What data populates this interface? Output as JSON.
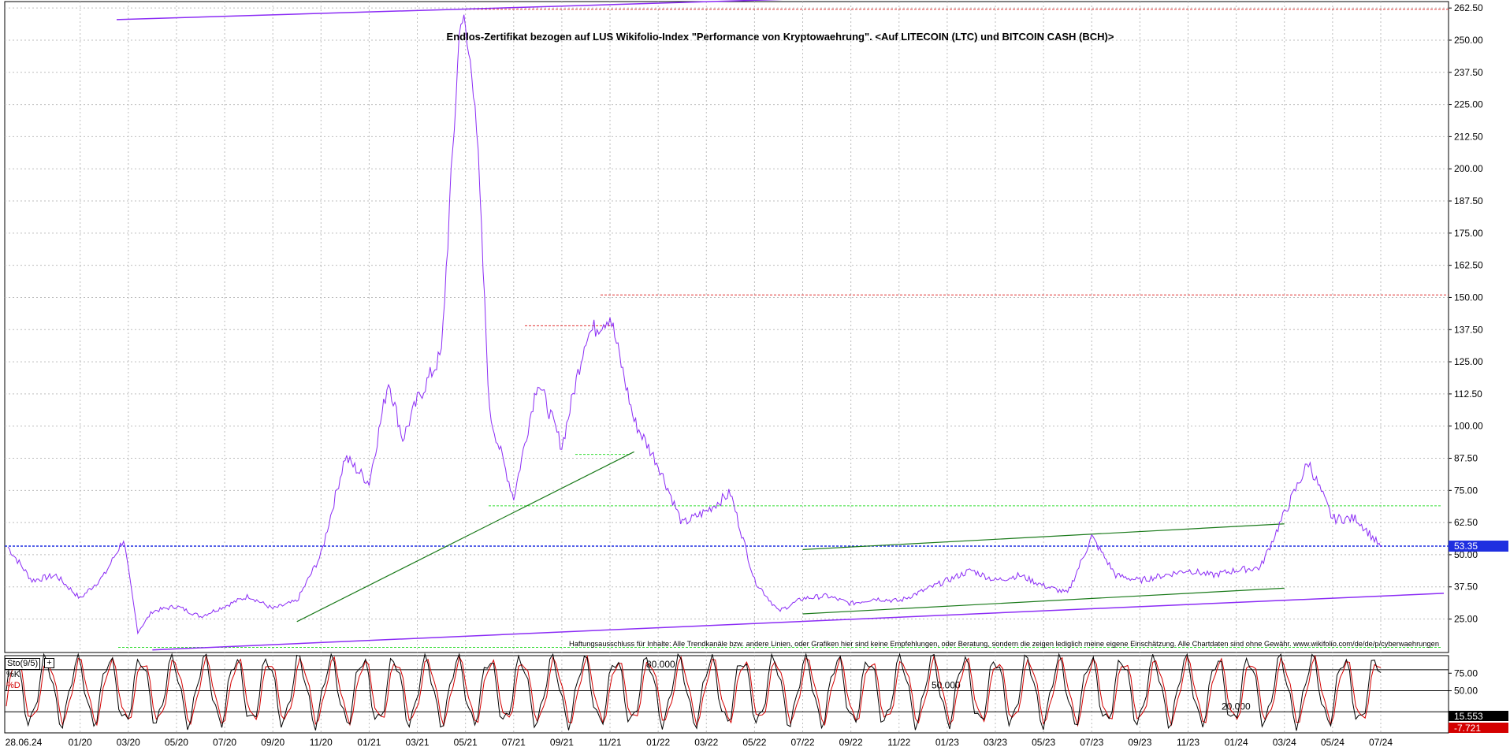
{
  "colors": {
    "price": "#8b2cf5",
    "trend_purple": "#8b2cf5",
    "trend_green": "#1a7a1a",
    "support_green_dotted": "#33dd33",
    "resistance_red_dotted": "#e03030",
    "current_price_blue": "#1f2fe0",
    "stoch_k": "#000000",
    "stoch_d": "#d40000"
  },
  "chart_data": [
    {
      "type": "line",
      "title": "Endlos-Zertifikat bezogen auf LUS Wikifolio-Index \"Performance von Kryptowaehrung\". <Auf LITECOIN (LTC) und BITCOIN CASH (BCH)>",
      "xlabel": "",
      "ylabel": "",
      "ylim": [
        12,
        265
      ],
      "grid": true,
      "y_ticks": [
        "262.50",
        "250.00",
        "237.50",
        "225.00",
        "212.50",
        "200.00",
        "187.50",
        "175.00",
        "162.50",
        "150.00",
        "137.50",
        "125.00",
        "112.50",
        "100.00",
        "87.50",
        "75.00",
        "62.50",
        "50.00",
        "37.50",
        "25.00"
      ],
      "x_ticks": [
        "28.06.24",
        "01/20",
        "03/20",
        "05/20",
        "07/20",
        "09/20",
        "11/20",
        "01/21",
        "03/21",
        "05/21",
        "07/21",
        "09/21",
        "11/21",
        "01/22",
        "03/22",
        "05/22",
        "07/22",
        "09/22",
        "11/22",
        "01/23",
        "03/23",
        "05/23",
        "07/23",
        "09/23",
        "11/23",
        "01/24",
        "03/24",
        "05/24",
        "07/24"
      ],
      "last_price_label": "53.35",
      "series": [
        {
          "x": [
            "10/19",
            "11/19",
            "12/19",
            "01/20",
            "02/20",
            "03/20",
            "03/20",
            "04/20",
            "05/20",
            "06/20",
            "07/20",
            "08/20",
            "09/20",
            "10/20",
            "11/20",
            "12/20",
            "01/21",
            "02/21",
            "02/21",
            "03/21",
            "04/21",
            "05/21",
            "05/21",
            "06/21",
            "07/21",
            "08/21",
            "09/21",
            "10/21",
            "11/21",
            "12/21",
            "01/22",
            "02/22",
            "03/22",
            "04/22",
            "05/22",
            "06/22",
            "07/22",
            "08/22",
            "09/22",
            "10/22",
            "11/22",
            "12/22",
            "01/23",
            "02/23",
            "03/23",
            "04/23",
            "05/23",
            "06/23",
            "07/23",
            "08/23",
            "09/23",
            "10/23",
            "11/23",
            "12/23",
            "01/24",
            "02/24",
            "03/24",
            "04/24",
            "05/24",
            "06/24",
            "07/24"
          ],
          "values": [
            53,
            40,
            42,
            33,
            42,
            56,
            20,
            28,
            30,
            26,
            30,
            34,
            29,
            32,
            50,
            88,
            78,
            118,
            95,
            110,
            128,
            262,
            230,
            105,
            72,
            118,
            92,
            135,
            143,
            102,
            85,
            62,
            67,
            74,
            40,
            28,
            33,
            34,
            31,
            33,
            32,
            36,
            40,
            44,
            40,
            42,
            38,
            35,
            57,
            42,
            40,
            42,
            44,
            42,
            44,
            45,
            66,
            86,
            64,
            64,
            53
          ]
        }
      ],
      "annotations": {
        "disclaimer": "Haftungsausschluss für Inhalte: Alle Trendkanäle bzw. andere Linien, oder Grafiken hier sind keine Empfehlungen, oder Beratung, sondern die zeigen lediglich meine eigene Einschätzung. Alle Chartdaten sind ohne Gewähr. www.wikifolio.com/de/de/p/cyberwaehrungen"
      },
      "horizontal_levels": {
        "resistance_red_dotted": [
          262,
          151,
          139
        ],
        "support_green_dotted": [
          89,
          69,
          14
        ],
        "current_price_blue": 53.35
      },
      "trend_lines": {
        "purple": [
          {
            "x": [
              "12/19",
              "05/21"
            ],
            "y": [
              258,
              262
            ]
          },
          {
            "x": [
              "04/20",
              "07/24"
            ],
            "y": [
              13,
              35
            ]
          }
        ],
        "green": [
          {
            "x": [
              "10/20",
              "12/21"
            ],
            "y": [
              24,
              90
            ]
          },
          {
            "x": [
              "07/22",
              "03/24"
            ],
            "y": [
              52,
              62
            ]
          },
          {
            "x": [
              "07/22",
              "03/24"
            ],
            "y": [
              27,
              37
            ]
          }
        ]
      }
    },
    {
      "type": "line",
      "title": "Sto(9/5)",
      "ylim": [
        -10,
        100
      ],
      "y_ticks": [
        "75.00",
        "50.00"
      ],
      "levels": [
        {
          "label": "80.000",
          "value": 80
        },
        {
          "label": "50.000",
          "value": 50
        },
        {
          "label": "20.000",
          "value": 20
        }
      ],
      "series": [
        {
          "name": "%K",
          "last_value_label": "15.553"
        },
        {
          "name": "%D",
          "last_value_label": "-7.721"
        }
      ]
    }
  ],
  "stoch": {
    "title": "Sto(9/5)",
    "plus": "+",
    "k_label": "%K",
    "d_label": "%D"
  }
}
